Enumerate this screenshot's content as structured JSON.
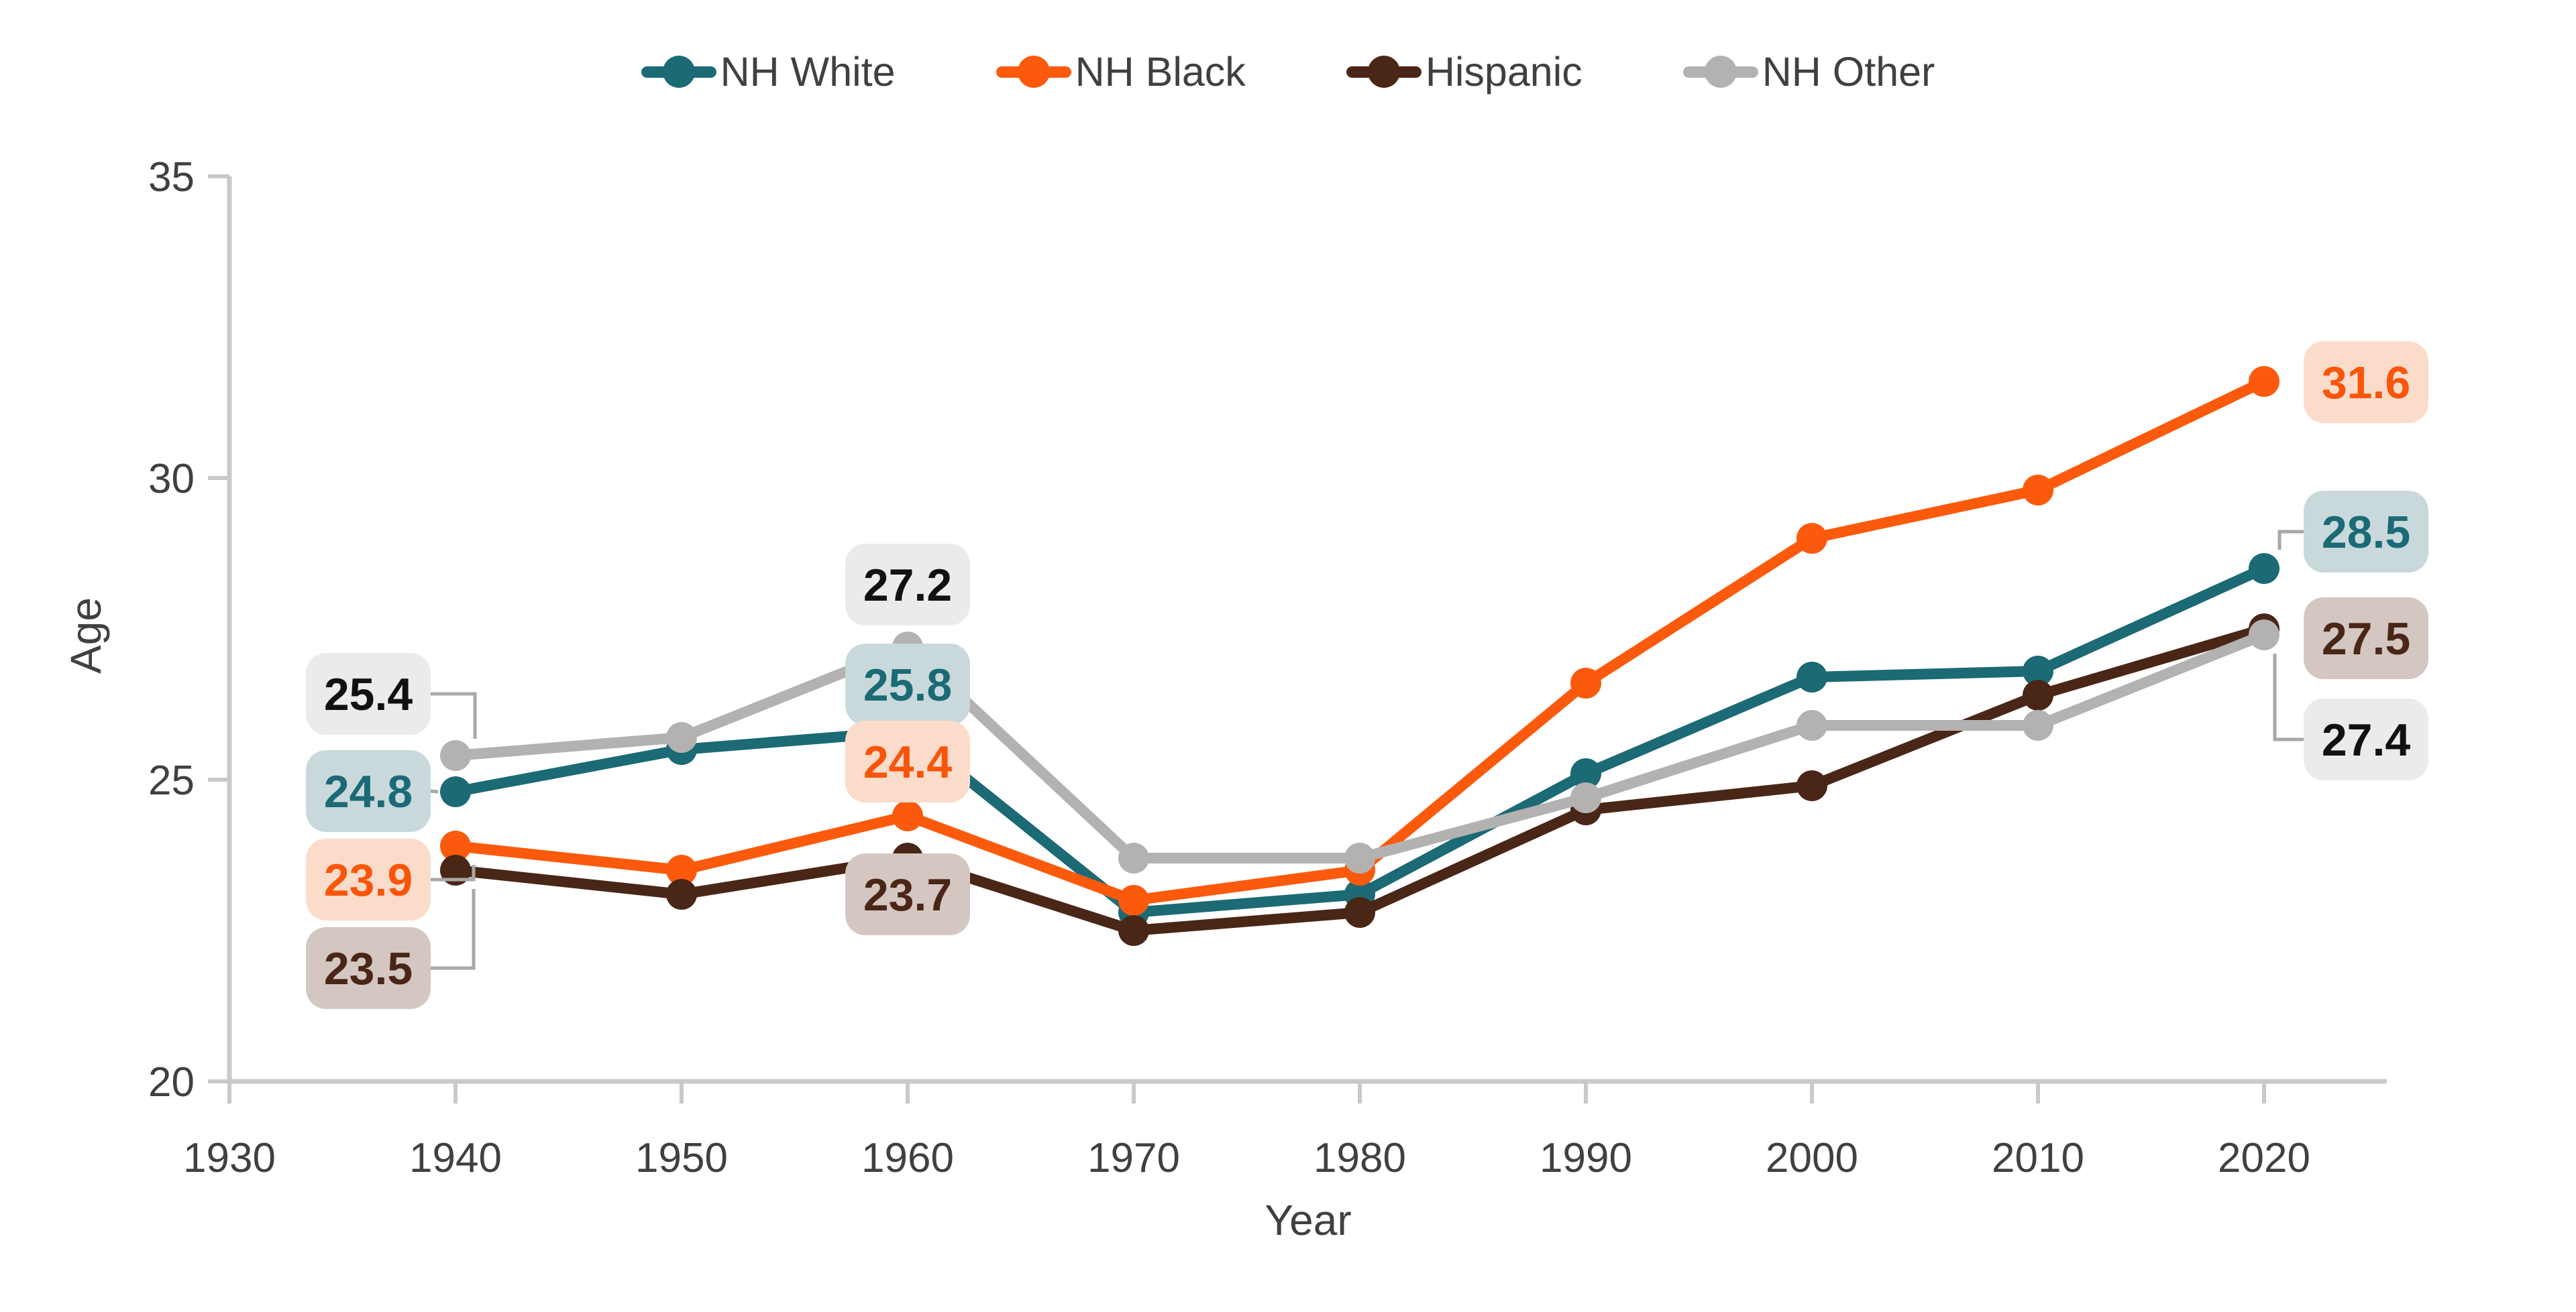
{
  "chart_data": {
    "type": "line",
    "title": "",
    "xlabel": "Year",
    "ylabel": "Age",
    "x": [
      1940,
      1950,
      1960,
      1970,
      1980,
      1990,
      2000,
      2010,
      2020
    ],
    "xticks": [
      1930,
      1940,
      1950,
      1960,
      1970,
      1980,
      1990,
      2000,
      2010,
      2020
    ],
    "yticks": [
      20,
      25,
      30,
      35
    ],
    "xlim": [
      1930,
      2026
    ],
    "ylim": [
      20,
      35
    ],
    "grid": false,
    "legend_position": "top-center",
    "background_color": "#ffffff",
    "axis_color": "#c9c9c9",
    "tick_label_color": "#404040",
    "leader_line_color": "#a8a8a8",
    "series": [
      {
        "name": "NH White",
        "color": "#1b6a75",
        "values": [
          24.8,
          25.5,
          25.8,
          22.8,
          23.1,
          25.1,
          26.7,
          26.8,
          28.5
        ],
        "labeled_years": [
          1940,
          1960,
          2020
        ],
        "label_box": {
          "fill": "#c9d9db",
          "text_color": "#1b6a75"
        }
      },
      {
        "name": "NH Black",
        "color": "#fb5a0d",
        "values": [
          23.9,
          23.5,
          24.4,
          23.0,
          23.5,
          26.6,
          29.0,
          29.8,
          31.6
        ],
        "labeled_years": [
          1940,
          1960,
          2020
        ],
        "label_box": {
          "fill": "#fbdccb",
          "text_color": "#f8550a"
        }
      },
      {
        "name": "Hispanic",
        "color": "#4a2617",
        "values": [
          23.5,
          23.1,
          23.7,
          22.5,
          22.8,
          24.5,
          24.9,
          26.4,
          27.5
        ],
        "labeled_years": [
          1940,
          1960,
          2020
        ],
        "label_box": {
          "fill": "#d4c7c1",
          "text_color": "#4a2617"
        }
      },
      {
        "name": "NH Other",
        "color": "#b3b2b1",
        "values": [
          25.4,
          25.7,
          27.2,
          23.7,
          23.7,
          24.7,
          25.9,
          25.9,
          27.4
        ],
        "labeled_years": [
          1940,
          1960,
          2020
        ],
        "label_box": {
          "fill": "#ebebeb",
          "text_color": "#111111"
        }
      }
    ]
  }
}
